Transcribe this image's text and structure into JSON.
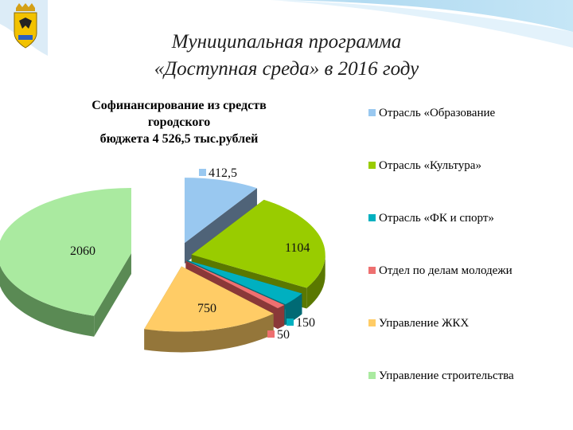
{
  "slide": {
    "title_line1": "Муниципальная программа",
    "title_line2": "«Доступная среда» в 2016 году"
  },
  "chart_data": {
    "type": "pie",
    "title_lines": [
      "Софинансирование из средств",
      "городского",
      "бюджета 4 526,5 тыс.рублей"
    ],
    "legend_position": "right",
    "slices": [
      {
        "name": "Отрасль «Образование",
        "value": 412.5,
        "label": "412,5",
        "color": "#99c8f0",
        "side": "#4f6378"
      },
      {
        "name": "Отрасль «Культура»",
        "value": 1104,
        "label": "1104",
        "color": "#99cc00",
        "side": "#5a7800"
      },
      {
        "name": "Отрасль «ФК и спорт»",
        "value": 150,
        "label": "150",
        "color": "#00b0c0",
        "side": "#006a74"
      },
      {
        "name": "Отдел по делам молодежи",
        "value": 50,
        "label": "50",
        "color": "#ee7070",
        "side": "#8a3838"
      },
      {
        "name": "Управление ЖКХ",
        "value": 750,
        "label": "750",
        "color": "#ffcc66",
        "side": "#94763a"
      },
      {
        "name": "Управление строительства",
        "value": 2060,
        "label": "2060",
        "color": "#aaeaa0",
        "side": "#5a8a54"
      }
    ]
  },
  "icons": {
    "emblem": "city-coat-of-arms"
  }
}
